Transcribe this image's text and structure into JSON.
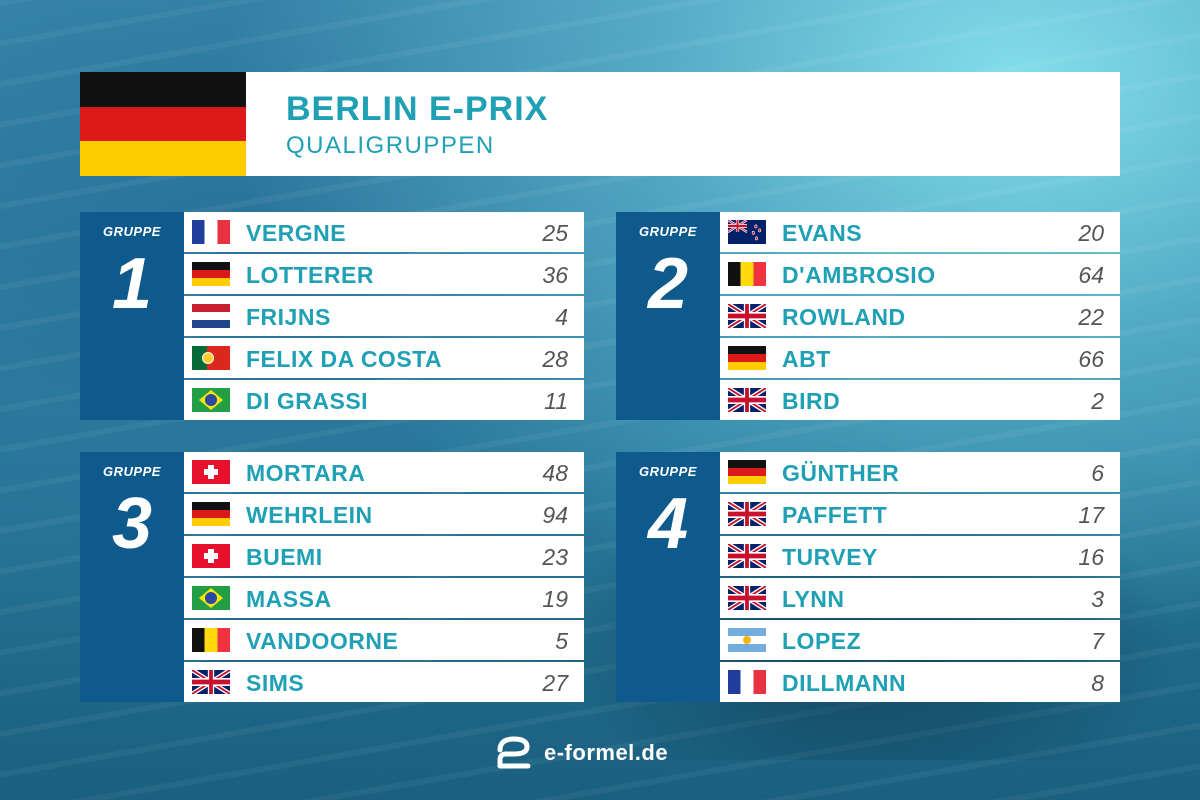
{
  "header": {
    "title": "BERLIN E-PRIX",
    "subtitle": "QUALIGRUPPEN",
    "flag": "germany-flag"
  },
  "groups": [
    {
      "label": "GRUPPE",
      "number": "1",
      "drivers": [
        {
          "flag": "france",
          "name": "VERGNE",
          "number": "25"
        },
        {
          "flag": "germany",
          "name": "LOTTERER",
          "number": "36"
        },
        {
          "flag": "netherlands",
          "name": "FRIJNS",
          "number": "4"
        },
        {
          "flag": "portugal",
          "name": "FELIX DA COSTA",
          "number": "28"
        },
        {
          "flag": "brazil",
          "name": "DI GRASSI",
          "number": "11"
        }
      ]
    },
    {
      "label": "GRUPPE",
      "number": "2",
      "drivers": [
        {
          "flag": "new-zealand",
          "name": "EVANS",
          "number": "20"
        },
        {
          "flag": "belgium",
          "name": "D'AMBROSIO",
          "number": "64"
        },
        {
          "flag": "united-kingdom",
          "name": "ROWLAND",
          "number": "22"
        },
        {
          "flag": "germany",
          "name": "ABT",
          "number": "66"
        },
        {
          "flag": "united-kingdom",
          "name": "BIRD",
          "number": "2"
        }
      ]
    },
    {
      "label": "GRUPPE",
      "number": "3",
      "drivers": [
        {
          "flag": "switzerland",
          "name": "MORTARA",
          "number": "48"
        },
        {
          "flag": "germany",
          "name": "WEHRLEIN",
          "number": "94"
        },
        {
          "flag": "switzerland",
          "name": "BUEMI",
          "number": "23"
        },
        {
          "flag": "brazil",
          "name": "MASSA",
          "number": "19"
        },
        {
          "flag": "belgium",
          "name": "VANDOORNE",
          "number": "5"
        },
        {
          "flag": "united-kingdom",
          "name": "SIMS",
          "number": "27"
        }
      ]
    },
    {
      "label": "GRUPPE",
      "number": "4",
      "drivers": [
        {
          "flag": "germany",
          "name": "GÜNTHER",
          "number": "6"
        },
        {
          "flag": "united-kingdom",
          "name": "PAFFETT",
          "number": "17"
        },
        {
          "flag": "united-kingdom",
          "name": "TURVEY",
          "number": "16"
        },
        {
          "flag": "united-kingdom",
          "name": "LYNN",
          "number": "3"
        },
        {
          "flag": "argentina",
          "name": "LOPEZ",
          "number": "7"
        },
        {
          "flag": "france",
          "name": "DILLMANN",
          "number": "8"
        }
      ]
    }
  ],
  "footer": {
    "brand": "e-formel.de",
    "logo": "e-formel-logo-icon"
  },
  "colors": {
    "accent": "#1fa0b5",
    "group_panel": "#0f5a8c",
    "number_text": "#555555"
  }
}
